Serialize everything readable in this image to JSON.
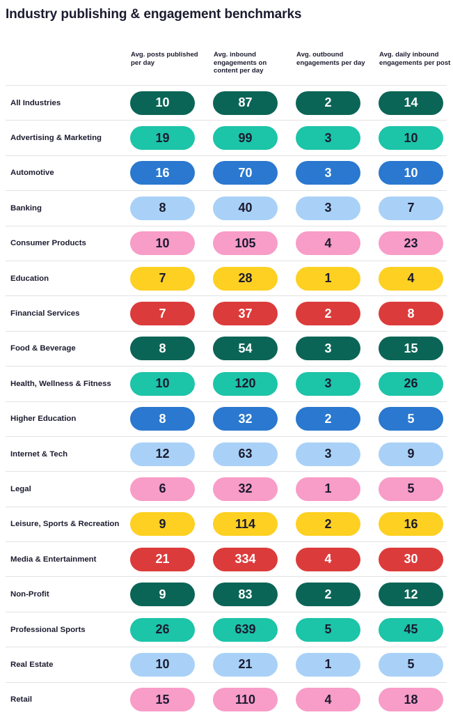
{
  "title": "Industry publishing & engagement benchmarks",
  "chart_data": {
    "type": "table",
    "columns": [
      "Avg. posts published per day",
      "Avg. inbound engagements on content per day",
      "Avg. outbound engagements per day",
      "Avg. daily inbound engagements per post"
    ],
    "rows": [
      {
        "industry": "All Industries",
        "values": [
          10,
          87,
          2,
          14
        ],
        "color": "#0b6556",
        "text_color": "#ffffff"
      },
      {
        "industry": "Advertising & Marketing",
        "values": [
          19,
          99,
          3,
          10
        ],
        "color": "#1cc4a8",
        "text_color": "#1b1b2f"
      },
      {
        "industry": "Automotive",
        "values": [
          16,
          70,
          3,
          10
        ],
        "color": "#2a78cf",
        "text_color": "#ffffff"
      },
      {
        "industry": "Banking",
        "values": [
          8,
          40,
          3,
          7
        ],
        "color": "#a9d1f7",
        "text_color": "#1b1b2f"
      },
      {
        "industry": "Consumer Products",
        "values": [
          10,
          105,
          4,
          23
        ],
        "color": "#f89cc8",
        "text_color": "#1b1b2f"
      },
      {
        "industry": "Education",
        "values": [
          7,
          28,
          1,
          4
        ],
        "color": "#fdd022",
        "text_color": "#1b1b2f"
      },
      {
        "industry": "Financial Services",
        "values": [
          7,
          37,
          2,
          8
        ],
        "color": "#dc3b3b",
        "text_color": "#ffffff"
      },
      {
        "industry": "Food & Beverage",
        "values": [
          8,
          54,
          3,
          15
        ],
        "color": "#0b6556",
        "text_color": "#ffffff"
      },
      {
        "industry": "Health, Wellness & Fitness",
        "values": [
          10,
          120,
          3,
          26
        ],
        "color": "#1cc4a8",
        "text_color": "#1b1b2f"
      },
      {
        "industry": "Higher Education",
        "values": [
          8,
          32,
          2,
          5
        ],
        "color": "#2a78cf",
        "text_color": "#ffffff"
      },
      {
        "industry": "Internet & Tech",
        "values": [
          12,
          63,
          3,
          9
        ],
        "color": "#a9d1f7",
        "text_color": "#1b1b2f"
      },
      {
        "industry": "Legal",
        "values": [
          6,
          32,
          1,
          5
        ],
        "color": "#f89cc8",
        "text_color": "#1b1b2f"
      },
      {
        "industry": "Leisure, Sports & Recreation",
        "values": [
          9,
          114,
          2,
          16
        ],
        "color": "#fdd022",
        "text_color": "#1b1b2f"
      },
      {
        "industry": "Media & Entertainment",
        "values": [
          21,
          334,
          4,
          30
        ],
        "color": "#dc3b3b",
        "text_color": "#ffffff"
      },
      {
        "industry": "Non-Profit",
        "values": [
          9,
          83,
          2,
          12
        ],
        "color": "#0b6556",
        "text_color": "#ffffff"
      },
      {
        "industry": "Professional Sports",
        "values": [
          26,
          639,
          5,
          45
        ],
        "color": "#1cc4a8",
        "text_color": "#1b1b2f"
      },
      {
        "industry": "Real Estate",
        "values": [
          10,
          21,
          1,
          5
        ],
        "color": "#a9d1f7",
        "text_color": "#1b1b2f"
      },
      {
        "industry": "Retail",
        "values": [
          15,
          110,
          4,
          18
        ],
        "color": "#f89cc8",
        "text_color": "#1b1b2f"
      }
    ]
  }
}
